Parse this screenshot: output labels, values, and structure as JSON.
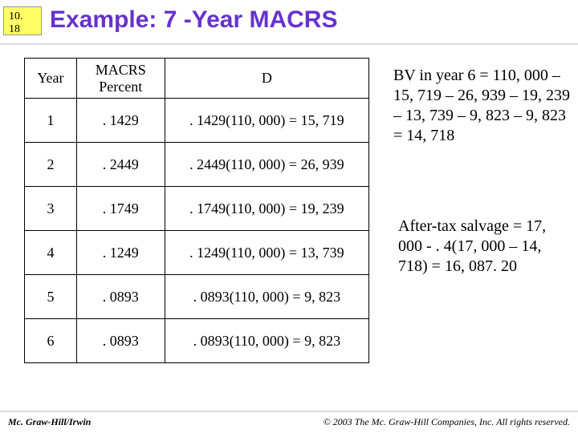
{
  "slide_number": "10. 18",
  "title": "Example: 7 -Year MACRS",
  "table": {
    "headers": {
      "year": "Year",
      "percent": "MACRS Percent",
      "d": "D"
    },
    "rows": [
      {
        "year": "1",
        "percent": ". 1429",
        "d": ". 1429(110, 000) = 15, 719"
      },
      {
        "year": "2",
        "percent": ". 2449",
        "d": ". 2449(110, 000) = 26, 939"
      },
      {
        "year": "3",
        "percent": ". 1749",
        "d": ". 1749(110, 000) = 19, 239"
      },
      {
        "year": "4",
        "percent": ". 1249",
        "d": ". 1249(110, 000) = 13, 739"
      },
      {
        "year": "5",
        "percent": ". 0893",
        "d": ". 0893(110, 000) = 9, 823"
      },
      {
        "year": "6",
        "percent": ". 0893",
        "d": ". 0893(110, 000) = 9, 823"
      }
    ]
  },
  "side1": "BV in year 6 = 110, 000 – 15, 719 – 26, 939 – 19, 239 – 13, 739 – 9, 823 – 9, 823 = 14, 718",
  "side2": "After-tax salvage = 17, 000 - . 4(17, 000 – 14, 718) = 16, 087. 20",
  "footer_left": "Mc. Graw-Hill/Irwin",
  "footer_right": "© 2003 The Mc. Graw-Hill Companies, Inc. All rights reserved.",
  "colors": {
    "title": "#6633cc",
    "slide_bg": "#ffff66",
    "rule": "#dcdcdc"
  }
}
